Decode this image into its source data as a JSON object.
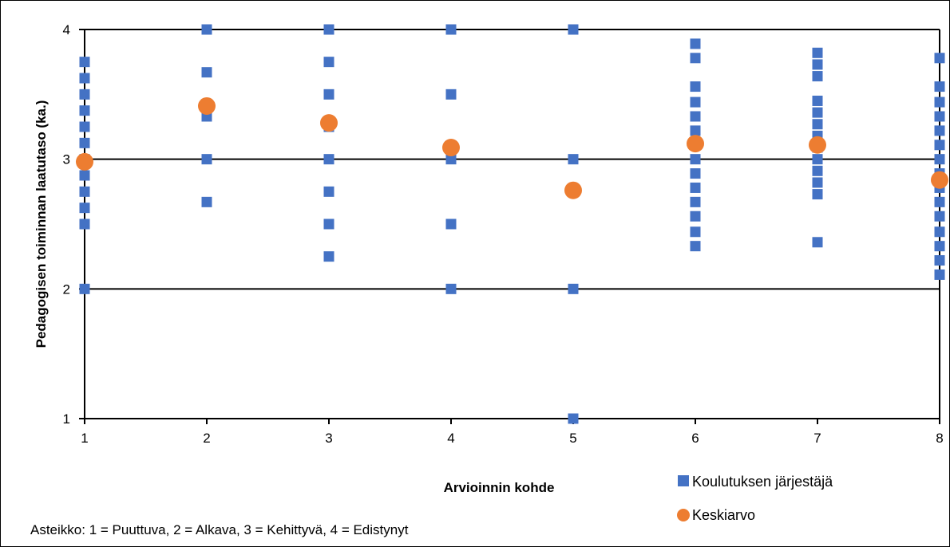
{
  "chart_data": {
    "type": "scatter",
    "xlabel": "Arvioinnin kohde",
    "ylabel": "Pedagogisen toiminnan laatutaso (ka.)",
    "xlim": [
      1,
      8
    ],
    "ylim": [
      1,
      4
    ],
    "x_ticks": [
      "1",
      "2",
      "3",
      "4",
      "5",
      "6",
      "7",
      "8"
    ],
    "y_ticks": [
      "1",
      "2",
      "3",
      "4"
    ],
    "grid": "horizontal",
    "legend_position": "bottom-right",
    "note": "Asteikko: 1 = Puuttuva, 2 = Alkava, 3 = Kehittyvä, 4 = Edistynyt",
    "series": [
      {
        "name": "Koulutuksen järjestäjä",
        "marker": "square",
        "color": "#4472C4",
        "points": [
          [
            1,
            2.0
          ],
          [
            1,
            2.5
          ],
          [
            1,
            2.625
          ],
          [
            1,
            2.75
          ],
          [
            1,
            2.875
          ],
          [
            1,
            3.0
          ],
          [
            1,
            3.125
          ],
          [
            1,
            3.25
          ],
          [
            1,
            3.375
          ],
          [
            1,
            3.5
          ],
          [
            1,
            3.625
          ],
          [
            1,
            3.75
          ],
          [
            2,
            2.67
          ],
          [
            2,
            3.0
          ],
          [
            2,
            3.33
          ],
          [
            2,
            3.67
          ],
          [
            2,
            4.0
          ],
          [
            3,
            2.25
          ],
          [
            3,
            2.5
          ],
          [
            3,
            2.75
          ],
          [
            3,
            3.0
          ],
          [
            3,
            3.25
          ],
          [
            3,
            3.5
          ],
          [
            3,
            3.75
          ],
          [
            3,
            4.0
          ],
          [
            4,
            2.0
          ],
          [
            4,
            2.5
          ],
          [
            4,
            3.0
          ],
          [
            4,
            3.5
          ],
          [
            4,
            4.0
          ],
          [
            5,
            1.0
          ],
          [
            5,
            2.0
          ],
          [
            5,
            3.0
          ],
          [
            5,
            4.0
          ],
          [
            6,
            2.33
          ],
          [
            6,
            2.44
          ],
          [
            6,
            2.56
          ],
          [
            6,
            2.67
          ],
          [
            6,
            2.78
          ],
          [
            6,
            2.89
          ],
          [
            6,
            3.0
          ],
          [
            6,
            3.11
          ],
          [
            6,
            3.22
          ],
          [
            6,
            3.33
          ],
          [
            6,
            3.44
          ],
          [
            6,
            3.56
          ],
          [
            6,
            3.78
          ],
          [
            6,
            3.89
          ],
          [
            7,
            2.36
          ],
          [
            7,
            2.73
          ],
          [
            7,
            2.82
          ],
          [
            7,
            2.91
          ],
          [
            7,
            3.0
          ],
          [
            7,
            3.09
          ],
          [
            7,
            3.18
          ],
          [
            7,
            3.27
          ],
          [
            7,
            3.36
          ],
          [
            7,
            3.45
          ],
          [
            7,
            3.64
          ],
          [
            7,
            3.73
          ],
          [
            7,
            3.82
          ],
          [
            8,
            2.11
          ],
          [
            8,
            2.22
          ],
          [
            8,
            2.33
          ],
          [
            8,
            2.44
          ],
          [
            8,
            2.56
          ],
          [
            8,
            2.67
          ],
          [
            8,
            2.78
          ],
          [
            8,
            2.89
          ],
          [
            8,
            3.0
          ],
          [
            8,
            3.11
          ],
          [
            8,
            3.22
          ],
          [
            8,
            3.33
          ],
          [
            8,
            3.44
          ],
          [
            8,
            3.56
          ],
          [
            8,
            3.78
          ]
        ]
      },
      {
        "name": "Keskiarvo",
        "marker": "circle",
        "color": "#ED7D31",
        "points": [
          [
            1,
            2.98
          ],
          [
            2,
            3.41
          ],
          [
            3,
            3.28
          ],
          [
            4,
            3.09
          ],
          [
            5,
            2.76
          ],
          [
            6,
            3.12
          ],
          [
            7,
            3.11
          ],
          [
            8,
            2.84
          ]
        ]
      }
    ]
  }
}
